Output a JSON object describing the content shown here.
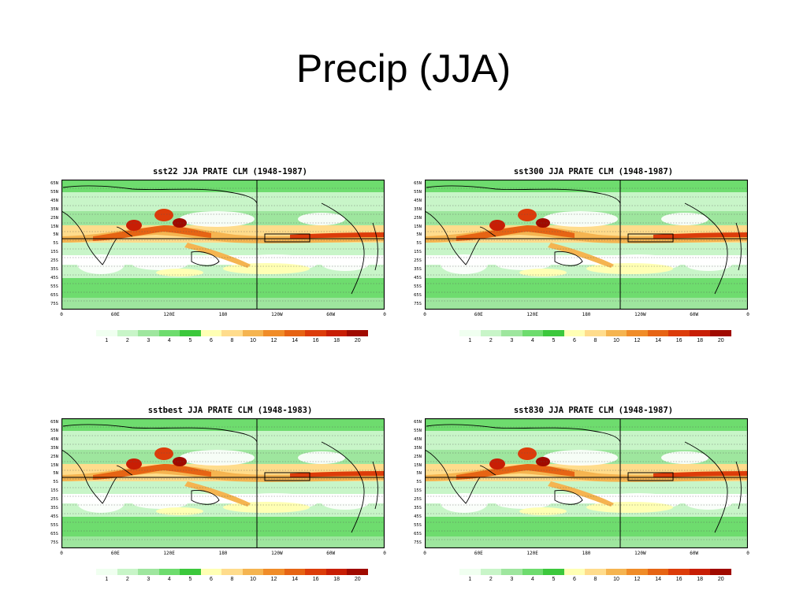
{
  "slide": {
    "title": "Precip (JJA)"
  },
  "panels": [
    {
      "title": "sst22 JJA PRATE CLM (1948-1987)"
    },
    {
      "title": "sst300 JJA PRATE CLM (1948-1987)"
    },
    {
      "title": "sstbest JJA PRATE CLM (1948-1983)"
    },
    {
      "title": "sst830 JJA PRATE CLM (1948-1987)"
    }
  ],
  "axes": {
    "lat_labels": [
      "65N",
      "55N",
      "45N",
      "35N",
      "25N",
      "15N",
      "5N",
      "5S",
      "15S",
      "25S",
      "35S",
      "45S",
      "55S",
      "65S",
      "75S"
    ],
    "lon_labels": [
      "0",
      "60E",
      "120E",
      "180",
      "120W",
      "60W",
      "0"
    ]
  },
  "colorbar": {
    "labels": [
      "1",
      "2",
      "3",
      "4",
      "5",
      "6",
      "8",
      "10",
      "12",
      "14",
      "16",
      "18",
      "20"
    ],
    "colors": [
      "#f0fff0",
      "#c8f5c8",
      "#9ee69e",
      "#6edc6e",
      "#3cc83c",
      "#ffffb4",
      "#ffdc8c",
      "#f5b450",
      "#f08c28",
      "#e66414",
      "#dc3c0a",
      "#c81e05",
      "#a00a00"
    ]
  }
}
